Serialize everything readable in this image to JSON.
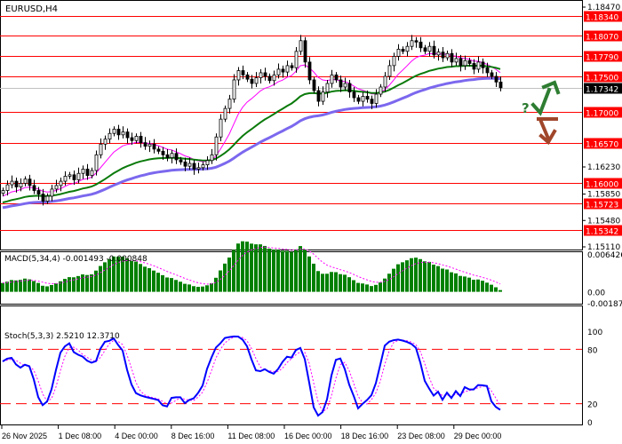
{
  "window": {
    "title": "EURUSD,H4"
  },
  "colors": {
    "bull": "#ffffff",
    "bear": "#000000",
    "level": "#ff0000",
    "ema_fast": "#ff00ff",
    "ema_mid": "#0a7a0a",
    "ema_slow": "#7b68ee",
    "macd_hist": "#008000",
    "macd_signal": "#ff00ff",
    "stoch_main": "#0000ff",
    "stoch_signal": "#ff00ff",
    "arrow_up": "#2e7d32",
    "arrow_down": "#a0462a"
  },
  "icons": {
    "up": "arrow-up-icon",
    "down": "arrow-down-icon",
    "question": "?"
  },
  "chart_data": {
    "type": "candlestick",
    "symbol": "EURUSD",
    "timeframe": "H4",
    "ylim": [
      1.1511,
      1.1847
    ],
    "closes": [
      1.159,
      1.1598,
      1.1603,
      1.1595,
      1.16,
      1.1606,
      1.1597,
      1.159,
      1.1585,
      1.1575,
      1.1582,
      1.1592,
      1.1597,
      1.1603,
      1.161,
      1.1612,
      1.1605,
      1.1614,
      1.162,
      1.1611,
      1.1618,
      1.164,
      1.1655,
      1.1662,
      1.167,
      1.1676,
      1.1668,
      1.1672,
      1.1664,
      1.166,
      1.1666,
      1.1657,
      1.1652,
      1.1655,
      1.1648,
      1.1645,
      1.164,
      1.1636,
      1.1642,
      1.1633,
      1.163,
      1.1624,
      1.1628,
      1.162,
      1.1622,
      1.1626,
      1.1632,
      1.164,
      1.1665,
      1.169,
      1.1705,
      1.1718,
      1.1745,
      1.1758,
      1.1752,
      1.1746,
      1.174,
      1.1748,
      1.1755,
      1.175,
      1.1744,
      1.1752,
      1.176,
      1.1756,
      1.1765,
      1.1762,
      1.1785,
      1.18,
      1.177,
      1.1745,
      1.173,
      1.1715,
      1.1728,
      1.174,
      1.1752,
      1.1745,
      1.1735,
      1.174,
      1.1728,
      1.172,
      1.1715,
      1.1722,
      1.1718,
      1.1712,
      1.1725,
      1.1735,
      1.175,
      1.1765,
      1.1778,
      1.1788,
      1.1785,
      1.1792,
      1.18,
      1.1798,
      1.179,
      1.1785,
      1.1792,
      1.178,
      1.1784,
      1.1776,
      1.1782,
      1.177,
      1.1775,
      1.1765,
      1.1772,
      1.1768,
      1.176,
      1.177,
      1.1762,
      1.1755,
      1.175,
      1.1742,
      1.1734
    ],
    "moving_averages": [
      {
        "color": "#ff00ff",
        "period": 10,
        "start": 1.158
      },
      {
        "color": "#0a7a0a",
        "period": 30,
        "start": 1.1572
      },
      {
        "color": "#7b68ee",
        "period": 55,
        "start": 1.1565
      }
    ],
    "levels": [
      {
        "price": 1.1834,
        "label": "1.18340"
      },
      {
        "price": 1.1807,
        "label": "1.18070"
      },
      {
        "price": 1.1779,
        "label": "1.17790"
      },
      {
        "price": 1.175,
        "label": "1.17500"
      },
      {
        "price": 1.17,
        "label": "1.17000"
      },
      {
        "price": 1.1657,
        "label": "1.16570"
      },
      {
        "price": 1.16,
        "label": "1.16000"
      },
      {
        "price": 1.15723,
        "label": "1.15723"
      },
      {
        "price": 1.15342,
        "label": "1.15342"
      }
    ],
    "current_price": {
      "price": 1.17342,
      "label": "1.17342"
    },
    "price_ticks": [
      {
        "price": 1.1847,
        "label": "1.18470"
      },
      {
        "price": 1.1623,
        "label": "1.16230"
      },
      {
        "price": 1.1585,
        "label": "1.15850"
      },
      {
        "price": 1.1548,
        "label": "1.15480"
      },
      {
        "price": 1.1511,
        "label": "1.15110"
      }
    ],
    "x_labels": [
      "26 Nov 2025",
      "1 Dec 08:00",
      "4 Dec 00:00",
      "8 Dec 16:00",
      "11 Dec 08:00",
      "16 Dec 00:00",
      "18 Dec 16:00",
      "23 Dec 08:00",
      "29 Dec 00:00"
    ],
    "macd": {
      "label": "MACD(5,34,4) -0.001493 -0.000848",
      "fast": 5,
      "slow": 34,
      "signal": 4,
      "ylim": [
        -0.001871,
        0.006426
      ],
      "tick_labels": [
        "0.006426",
        "0.00",
        "-0.001871"
      ]
    },
    "stochastic": {
      "label": "Stoch(5,3,3) 2.5210 12.3710",
      "k": 5,
      "d": 3,
      "slowing": 3,
      "levels": [
        20,
        80
      ],
      "tick_labels": [
        "100",
        "80",
        "20",
        "0"
      ]
    }
  }
}
